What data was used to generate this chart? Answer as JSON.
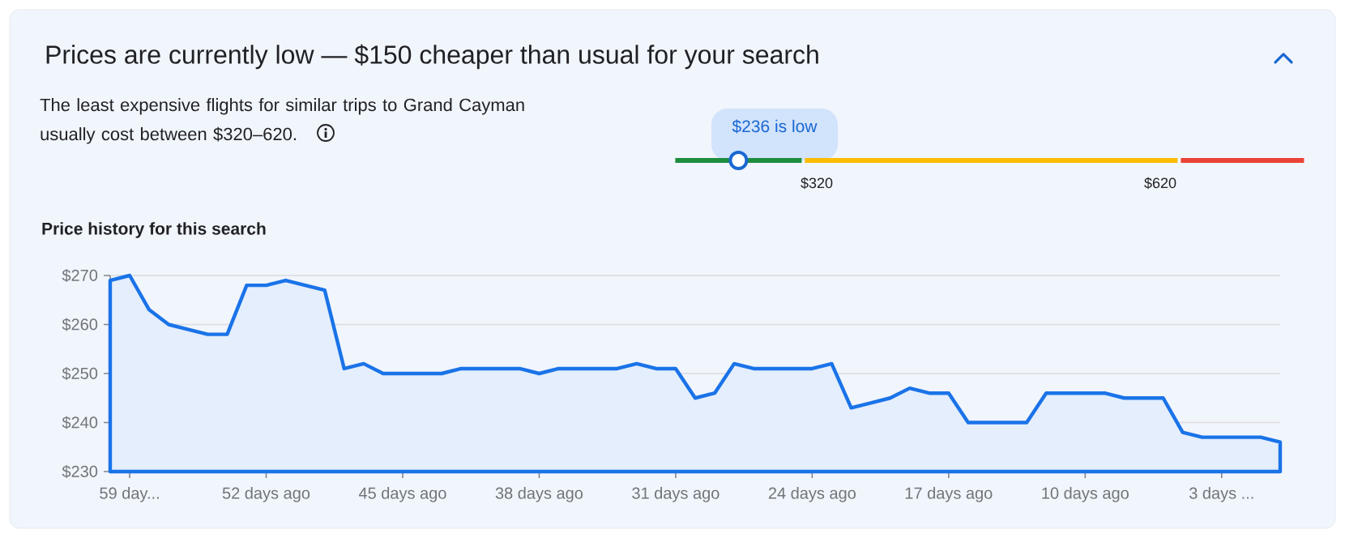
{
  "chart_data": {
    "type": "area",
    "title": "Prices are currently low — $150 cheaper than usual for your search",
    "subtitle": "The least expensive flights for similar trips to Grand Cayman usually cost between $320–620.",
    "annotations": [
      "$236 is low",
      "$320",
      "$620",
      "Price history for this search"
    ],
    "x": [
      60,
      59,
      58,
      57,
      56,
      55,
      54,
      53,
      52,
      51,
      50,
      49,
      48,
      47,
      46,
      45,
      44,
      43,
      42,
      41,
      40,
      39,
      38,
      37,
      36,
      35,
      34,
      33,
      32,
      31,
      30,
      29,
      28,
      27,
      26,
      25,
      24,
      23,
      22,
      21,
      20,
      19,
      18,
      17,
      16,
      15,
      14,
      13,
      12,
      11,
      10,
      9,
      8,
      7,
      6,
      5,
      4,
      3,
      2,
      1,
      0
    ],
    "values": [
      269,
      270,
      263,
      260,
      259,
      258,
      258,
      268,
      268,
      269,
      268,
      267,
      251,
      252,
      250,
      250,
      250,
      250,
      251,
      251,
      251,
      251,
      250,
      251,
      251,
      251,
      251,
      252,
      251,
      251,
      245,
      246,
      252,
      251,
      251,
      251,
      251,
      252,
      243,
      244,
      245,
      247,
      246,
      246,
      240,
      240,
      240,
      240,
      246,
      246,
      246,
      246,
      245,
      245,
      245,
      238,
      237,
      237,
      237,
      237,
      236
    ],
    "color": "#1a73e8",
    "xlim": [
      60,
      0
    ],
    "xticks": [
      {
        "value": 59,
        "label": "59 day..."
      },
      {
        "value": 52,
        "label": "52 days ago"
      },
      {
        "value": 45,
        "label": "45 days ago"
      },
      {
        "value": 38,
        "label": "38 days ago"
      },
      {
        "value": 31,
        "label": "31 days ago"
      },
      {
        "value": 24,
        "label": "24 days ago"
      },
      {
        "value": 17,
        "label": "17 days ago"
      },
      {
        "value": 10,
        "label": "10 days ago"
      },
      {
        "value": 3,
        "label": "3 days ..."
      }
    ],
    "ylim": [
      230,
      270
    ],
    "yticks": [
      {
        "value": 230,
        "label": "$230"
      },
      {
        "value": 240,
        "label": "$240"
      },
      {
        "value": 250,
        "label": "$250"
      },
      {
        "value": 260,
        "label": "$260"
      },
      {
        "value": 270,
        "label": "$270"
      }
    ],
    "grid": "y",
    "marker": "none"
  }
}
